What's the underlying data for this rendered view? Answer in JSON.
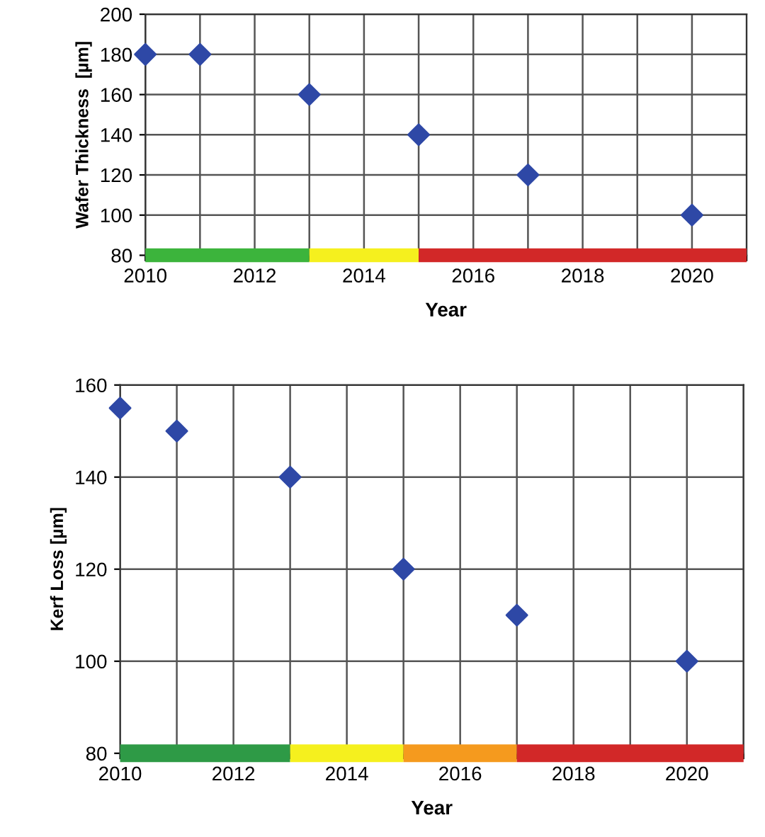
{
  "chart_data": [
    {
      "type": "scatter",
      "xlabel": "Year",
      "ylabel": "Wafer Thickness  [µm]",
      "x": [
        2010,
        2011,
        2013,
        2015,
        2017,
        2020
      ],
      "series": [
        {
          "color": "#2e48a6",
          "marker": "diamond",
          "values": [
            180,
            180,
            160,
            140,
            120,
            100
          ]
        },
        {
          "type": "line",
          "x": [
            2010,
            2013
          ],
          "values": [
            80,
            80
          ],
          "color": "#3cb43c"
        },
        {
          "type": "line",
          "x": [
            2013,
            2015
          ],
          "values": [
            80,
            80
          ],
          "color": "#f5f01e"
        },
        {
          "type": "line",
          "x": [
            2015,
            2021
          ],
          "values": [
            80,
            80
          ],
          "color": "#d22828"
        }
      ],
      "xlim": [
        2010,
        2021
      ],
      "ylim": [
        80,
        200
      ],
      "xticks": [
        2010,
        {
          "value": 2011,
          "label": null
        },
        2012,
        {
          "value": 2013,
          "label": null
        },
        2014,
        {
          "value": 2015,
          "label": null
        },
        2016,
        {
          "value": 2017,
          "label": null
        },
        2018,
        {
          "value": 2019,
          "label": null
        },
        2020,
        {
          "value": 2021,
          "label": null
        }
      ],
      "yticks": [
        80,
        100,
        120,
        140,
        160,
        180,
        200
      ],
      "grid": true
    },
    {
      "type": "scatter",
      "xlabel": "Year",
      "ylabel": "Kerf Loss [µm]",
      "x": [
        2010,
        2011,
        2013,
        2015,
        2017,
        2020
      ],
      "series": [
        {
          "color": "#2e48a6",
          "marker": "diamond",
          "values": [
            155,
            150,
            140,
            120,
            110,
            100
          ]
        },
        {
          "type": "line",
          "x": [
            2010,
            2013
          ],
          "values": [
            80,
            80
          ],
          "color": "#2e9a46"
        },
        {
          "type": "line",
          "x": [
            2013,
            2015
          ],
          "values": [
            80,
            80
          ],
          "color": "#f5f01e"
        },
        {
          "type": "line",
          "x": [
            2015,
            2017
          ],
          "values": [
            80,
            80
          ],
          "color": "#f59a1e"
        },
        {
          "type": "line",
          "x": [
            2017,
            2021
          ],
          "values": [
            80,
            80
          ],
          "color": "#d22828"
        }
      ],
      "xlim": [
        2010,
        2021
      ],
      "ylim": [
        80,
        160
      ],
      "xticks": [
        2010,
        {
          "value": 2011,
          "label": null
        },
        2012,
        {
          "value": 2013,
          "label": null
        },
        2014,
        {
          "value": 2015,
          "label": null
        },
        2016,
        {
          "value": 2017,
          "label": null
        },
        2018,
        {
          "value": 2019,
          "label": null
        },
        2020,
        {
          "value": 2021,
          "label": null
        }
      ],
      "yticks": [
        80,
        100,
        120,
        140,
        160
      ],
      "grid": true
    }
  ]
}
